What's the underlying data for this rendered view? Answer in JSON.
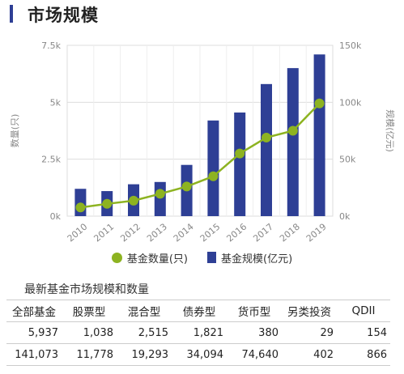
{
  "header": {
    "title": "市场规模"
  },
  "colors": {
    "accent": "#2e3f95",
    "line": "#8db321",
    "grid": "#dddddd"
  },
  "chart_data": {
    "type": "bar+line",
    "categories": [
      "2010",
      "2011",
      "2012",
      "2013",
      "2014",
      "2015",
      "2016",
      "2017",
      "2018",
      "2019"
    ],
    "series": [
      {
        "name": "基金数量(只)",
        "type": "line",
        "axis": "left",
        "values": [
          380,
          540,
          680,
          980,
          1300,
          1750,
          2750,
          3450,
          3750,
          4950
        ]
      },
      {
        "name": "基金规模(亿元)",
        "type": "bar",
        "axis": "right",
        "values": [
          24000,
          22000,
          28000,
          30000,
          45000,
          84000,
          91000,
          116000,
          130000,
          142000
        ]
      }
    ],
    "left_axis": {
      "label": "数量(只)",
      "ticks": [
        "0k",
        "2.5k",
        "5k",
        "7.5k"
      ],
      "ylim": [
        0,
        7500
      ]
    },
    "right_axis": {
      "label": "规模(亿元)",
      "ticks": [
        "0k",
        "50k",
        "100k",
        "150k"
      ],
      "ylim": [
        0,
        150000
      ]
    },
    "grid": true,
    "legend_placement": "bottom"
  },
  "legend": {
    "line_label": "基金数量(只)",
    "bar_label": "基金规模(亿元)"
  },
  "table": {
    "title": "最新基金市场规模和数量",
    "headers": [
      "全部基金",
      "股票型",
      "混合型",
      "债券型",
      "货币型",
      "另类投资",
      "QDII"
    ],
    "rows": [
      [
        "5,937",
        "1,038",
        "2,515",
        "1,821",
        "380",
        "29",
        "154"
      ],
      [
        "141,073",
        "11,778",
        "19,293",
        "34,094",
        "74,640",
        "402",
        "866"
      ]
    ]
  }
}
